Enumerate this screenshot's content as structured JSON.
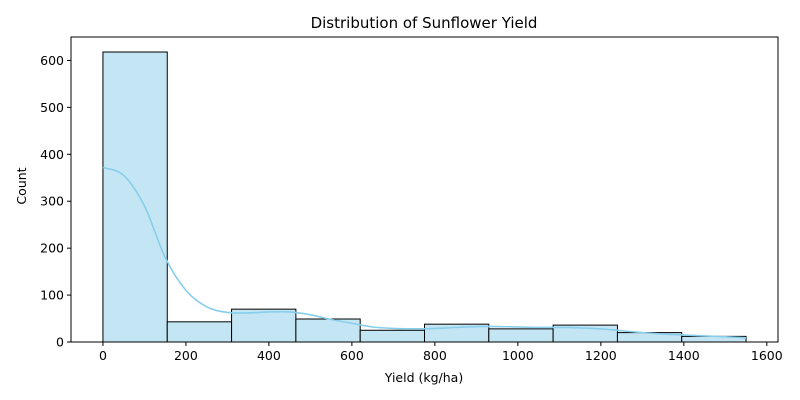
{
  "chart_data": {
    "type": "bar",
    "subtype": "histogram-with-kde",
    "title": "Distribution of Sunflower Yield",
    "xlabel": "Yield (kg/ha)",
    "ylabel": "Count",
    "xlim": [
      -77,
      1627
    ],
    "ylim": [
      0,
      650
    ],
    "x_ticks": [
      0,
      200,
      400,
      600,
      800,
      1000,
      1200,
      1400,
      1600
    ],
    "y_ticks": [
      0,
      100,
      200,
      300,
      400,
      500,
      600
    ],
    "bins": [
      {
        "start": 0,
        "end": 155,
        "count": 618
      },
      {
        "start": 155,
        "end": 310,
        "count": 43
      },
      {
        "start": 310,
        "end": 465,
        "count": 70
      },
      {
        "start": 465,
        "end": 620,
        "count": 49
      },
      {
        "start": 620,
        "end": 775,
        "count": 25
      },
      {
        "start": 775,
        "end": 930,
        "count": 38
      },
      {
        "start": 930,
        "end": 1085,
        "count": 28
      },
      {
        "start": 1085,
        "end": 1240,
        "count": 36
      },
      {
        "start": 1240,
        "end": 1395,
        "count": 20
      },
      {
        "start": 1395,
        "end": 1550,
        "count": 12
      }
    ],
    "kde": {
      "x": [
        0,
        50,
        100,
        150,
        200,
        250,
        300,
        350,
        400,
        450,
        500,
        550,
        600,
        650,
        700,
        750,
        800,
        850,
        900,
        950,
        1000,
        1050,
        1100,
        1150,
        1200,
        1250,
        1300,
        1350,
        1400,
        1450,
        1500,
        1550
      ],
      "y": [
        372,
        355,
        290,
        180,
        110,
        75,
        63,
        62,
        64,
        64,
        58,
        48,
        40,
        32,
        29,
        28,
        29,
        31,
        33,
        33,
        32,
        31,
        31,
        30,
        28,
        24,
        20,
        17,
        15,
        13,
        11,
        9
      ]
    },
    "colors": {
      "bar_fill": "#c4e6f4",
      "bar_edge": "#000000",
      "kde_line": "#87ceeb"
    },
    "grid": false,
    "legend": "none"
  }
}
